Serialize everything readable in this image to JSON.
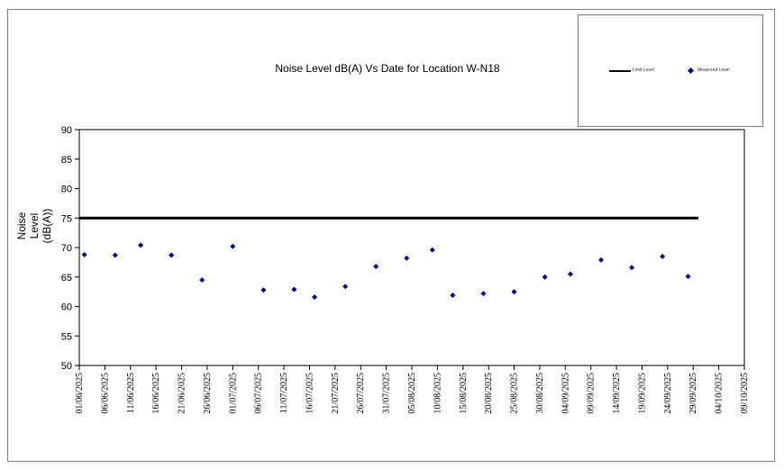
{
  "chart_data": {
    "type": "scatter",
    "title": "Noise Level dB(A) Vs Date for Location W-N18",
    "ylabel": "Noise Level (dB(A))",
    "ylabel_lines": [
      "Noise Level",
      "(dB(A))"
    ],
    "xlabel": "",
    "ylim": [
      50,
      90
    ],
    "yticks": [
      50,
      55,
      60,
      65,
      70,
      75,
      80,
      85,
      90
    ],
    "xlim": [
      "2025-06-01",
      "2025-10-09"
    ],
    "xticks": [
      "01/06/2025",
      "06/06/2025",
      "11/06/2025",
      "16/06/2025",
      "21/06/2025",
      "26/06/2025",
      "01/07/2025",
      "06/07/2025",
      "11/07/2025",
      "16/07/2025",
      "21/07/2025",
      "26/07/2025",
      "31/07/2025",
      "05/08/2025",
      "10/08/2025",
      "15/08/2025",
      "20/08/2025",
      "25/08/2025",
      "30/08/2025",
      "04/09/2025",
      "09/09/2025",
      "14/09/2025",
      "19/09/2025",
      "24/09/2025",
      "29/09/2025",
      "04/10/2025",
      "09/10/2025"
    ],
    "legend_position": "top-right",
    "grid": false,
    "series": [
      {
        "name": "Limit Level",
        "kind": "line",
        "color": "#000000",
        "points": [
          {
            "x": "2025-06-01",
            "y": 75
          },
          {
            "x": "2025-09-30",
            "y": 75
          }
        ]
      },
      {
        "name": "Measured Level",
        "kind": "scatter",
        "color": "#00008b",
        "points": [
          {
            "x": "2025-06-02",
            "y": 68.8
          },
          {
            "x": "2025-06-08",
            "y": 68.7
          },
          {
            "x": "2025-06-13",
            "y": 70.4
          },
          {
            "x": "2025-06-19",
            "y": 68.7
          },
          {
            "x": "2025-06-25",
            "y": 64.5
          },
          {
            "x": "2025-07-01",
            "y": 70.2
          },
          {
            "x": "2025-07-07",
            "y": 62.8
          },
          {
            "x": "2025-07-13",
            "y": 62.9
          },
          {
            "x": "2025-07-17",
            "y": 61.6
          },
          {
            "x": "2025-07-23",
            "y": 63.4
          },
          {
            "x": "2025-07-29",
            "y": 66.8
          },
          {
            "x": "2025-08-04",
            "y": 68.2
          },
          {
            "x": "2025-08-09",
            "y": 69.6
          },
          {
            "x": "2025-08-13",
            "y": 61.9
          },
          {
            "x": "2025-08-19",
            "y": 62.2
          },
          {
            "x": "2025-08-25",
            "y": 62.5
          },
          {
            "x": "2025-08-31",
            "y": 65.0
          },
          {
            "x": "2025-09-05",
            "y": 65.5
          },
          {
            "x": "2025-09-11",
            "y": 67.9
          },
          {
            "x": "2025-09-17",
            "y": 66.6
          },
          {
            "x": "2025-09-23",
            "y": 68.5
          },
          {
            "x": "2025-09-28",
            "y": 65.1
          }
        ]
      }
    ]
  },
  "legend": {
    "limit_label": "Limit Level",
    "measured_label": "Measured Level"
  }
}
